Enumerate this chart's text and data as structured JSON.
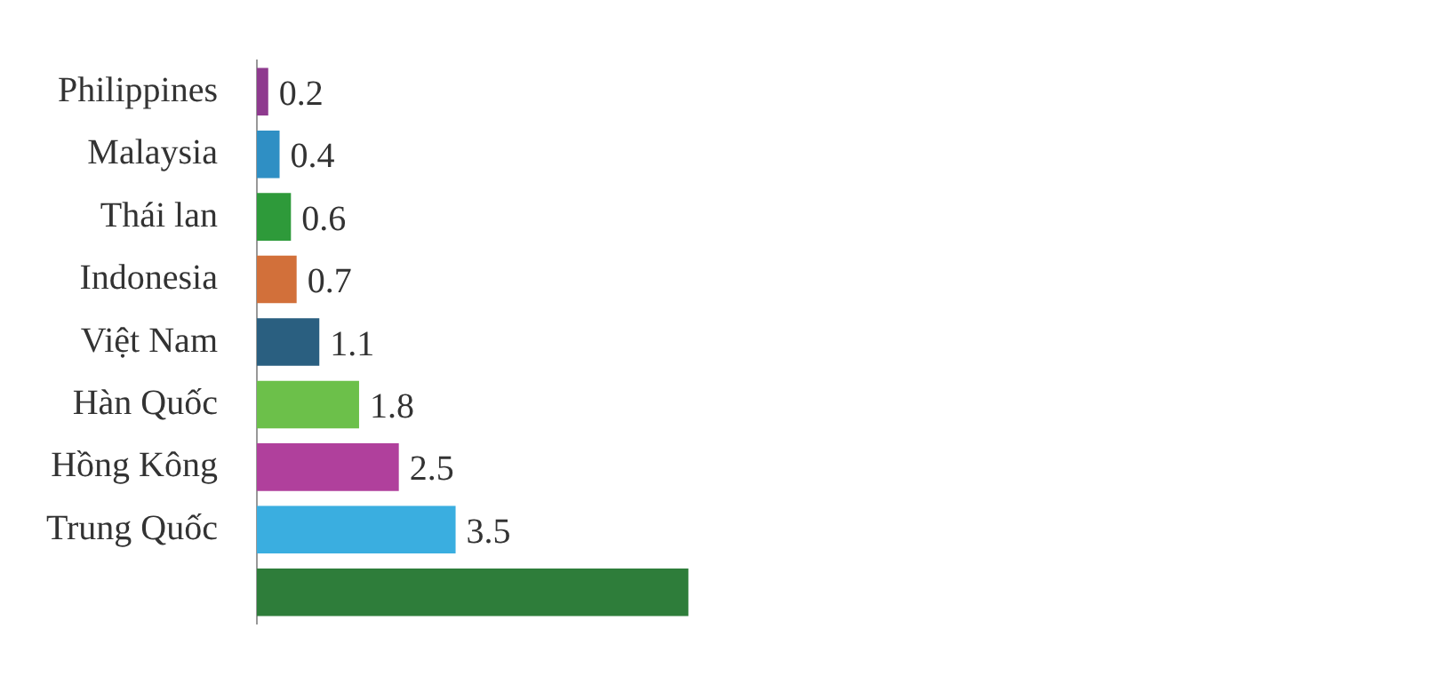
{
  "chart_data": {
    "type": "bar",
    "orientation": "horizontal",
    "categories": [
      "Philippines",
      "Malaysia",
      "Thái lan",
      "Indonesia",
      "Việt Nam",
      "Hàn Quốc",
      "Hồng Kông",
      "Trung Quốc",
      null
    ],
    "values": [
      0.2,
      0.4,
      0.6,
      0.7,
      1.1,
      1.8,
      2.5,
      3.5,
      7.6
    ],
    "colors": [
      "#8e3a8e",
      "#2f8fc4",
      "#2e9a3a",
      "#d2703a",
      "#2a5f80",
      "#6cc04a",
      "#b0409c",
      "#3aaee0",
      "#2e7d3a"
    ],
    "value_labels": [
      "0.2",
      "0.4",
      "0.6",
      "0.7",
      "1.1",
      "1.8",
      "2.5",
      "3.5",
      null
    ],
    "tick_labels": "y",
    "grid": false,
    "legend": false
  }
}
